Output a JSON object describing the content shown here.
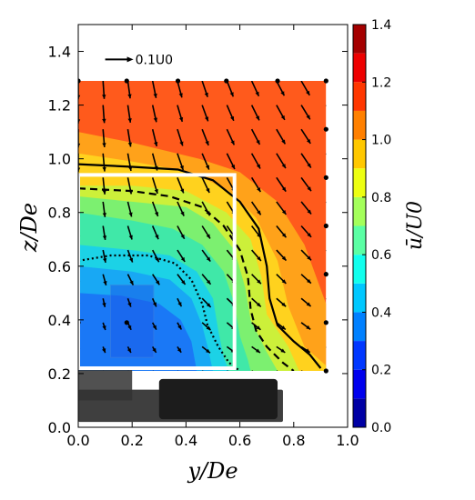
{
  "chart_data": {
    "type": "heatmap",
    "variant": "filled-contour-with-velocity-vectors",
    "xlabel": "y/De",
    "ylabel": "z/De",
    "xlim": [
      0.0,
      1.0
    ],
    "ylim": [
      0.0,
      1.5
    ],
    "x_ticks": [
      "0.0",
      "0.2",
      "0.4",
      "0.6",
      "0.8",
      "1.0"
    ],
    "y_ticks": [
      "0.0",
      "0.2",
      "0.4",
      "0.6",
      "0.8",
      "1.0",
      "1.2",
      "1.4"
    ],
    "colorbar": {
      "label": "ū/U0",
      "range": [
        0.0,
        1.4
      ],
      "ticks": [
        "0.0",
        "0.2",
        "0.4",
        "0.6",
        "0.8",
        "1.0",
        "1.2",
        "1.4"
      ],
      "colormap": "jet",
      "levels": 14
    },
    "reference_vector": {
      "label": "0.1U0",
      "magnitude": 0.1
    },
    "grid": false,
    "measurement_domain": {
      "y": [
        0.0,
        0.92
      ],
      "z": [
        0.21,
        1.29
      ]
    },
    "contour_regions": [
      {
        "level_range": [
          1.1,
          1.2
        ],
        "color": "#ff5a1c",
        "boundary": [
          [
            0.0,
            1.29
          ],
          [
            0.92,
            1.29
          ],
          [
            0.92,
            0.21
          ],
          [
            0.0,
            0.21
          ]
        ]
      },
      {
        "level_range": [
          1.0,
          1.1
        ],
        "color": "#ffa21a",
        "boundary": [
          [
            0.0,
            1.1
          ],
          [
            0.2,
            1.06
          ],
          [
            0.45,
            1.0
          ],
          [
            0.6,
            0.95
          ],
          [
            0.74,
            0.84
          ],
          [
            0.84,
            0.68
          ],
          [
            0.92,
            0.46
          ],
          [
            0.92,
            0.21
          ],
          [
            0.0,
            0.21
          ]
        ]
      },
      {
        "level_range": [
          0.9,
          1.0
        ],
        "color": "#ffd21e",
        "boundary": [
          [
            0.0,
            1.02
          ],
          [
            0.2,
            0.99
          ],
          [
            0.42,
            0.95
          ],
          [
            0.56,
            0.88
          ],
          [
            0.66,
            0.78
          ],
          [
            0.74,
            0.62
          ],
          [
            0.78,
            0.45
          ],
          [
            0.84,
            0.3
          ],
          [
            0.92,
            0.23
          ],
          [
            0.92,
            0.21
          ],
          [
            0.0,
            0.21
          ]
        ]
      },
      {
        "level_range": [
          0.8,
          0.9
        ],
        "color": "#ccf03a",
        "boundary": [
          [
            0.0,
            0.9
          ],
          [
            0.2,
            0.9
          ],
          [
            0.4,
            0.88
          ],
          [
            0.55,
            0.8
          ],
          [
            0.64,
            0.7
          ],
          [
            0.68,
            0.56
          ],
          [
            0.7,
            0.42
          ],
          [
            0.78,
            0.3
          ],
          [
            0.82,
            0.21
          ],
          [
            0.0,
            0.21
          ]
        ]
      },
      {
        "level_range": [
          0.7,
          0.8
        ],
        "color": "#7cf070",
        "boundary": [
          [
            0.0,
            0.86
          ],
          [
            0.2,
            0.84
          ],
          [
            0.4,
            0.82
          ],
          [
            0.5,
            0.76
          ],
          [
            0.58,
            0.66
          ],
          [
            0.62,
            0.52
          ],
          [
            0.64,
            0.4
          ],
          [
            0.7,
            0.28
          ],
          [
            0.74,
            0.21
          ],
          [
            0.0,
            0.21
          ]
        ]
      },
      {
        "level_range": [
          0.6,
          0.7
        ],
        "color": "#40e8a8",
        "boundary": [
          [
            0.0,
            0.8
          ],
          [
            0.2,
            0.77
          ],
          [
            0.35,
            0.74
          ],
          [
            0.46,
            0.68
          ],
          [
            0.54,
            0.58
          ],
          [
            0.58,
            0.46
          ],
          [
            0.6,
            0.34
          ],
          [
            0.63,
            0.25
          ],
          [
            0.64,
            0.21
          ],
          [
            0.0,
            0.21
          ]
        ]
      },
      {
        "level_range": [
          0.5,
          0.6
        ],
        "color": "#1cd2e6",
        "boundary": [
          [
            0.0,
            0.68
          ],
          [
            0.2,
            0.66
          ],
          [
            0.34,
            0.64
          ],
          [
            0.44,
            0.58
          ],
          [
            0.5,
            0.48
          ],
          [
            0.52,
            0.36
          ],
          [
            0.54,
            0.26
          ],
          [
            0.56,
            0.21
          ],
          [
            0.0,
            0.21
          ]
        ]
      },
      {
        "level_range": [
          0.4,
          0.5
        ],
        "color": "#18a8f4",
        "boundary": [
          [
            0.0,
            0.6
          ],
          [
            0.2,
            0.58
          ],
          [
            0.34,
            0.55
          ],
          [
            0.42,
            0.48
          ],
          [
            0.46,
            0.38
          ],
          [
            0.48,
            0.3
          ],
          [
            0.5,
            0.21
          ],
          [
            0.0,
            0.21
          ]
        ]
      },
      {
        "level_range": [
          0.3,
          0.4
        ],
        "color": "#1a78f6",
        "boundary": [
          [
            0.0,
            0.5
          ],
          [
            0.16,
            0.49
          ],
          [
            0.3,
            0.46
          ],
          [
            0.38,
            0.4
          ],
          [
            0.42,
            0.32
          ],
          [
            0.44,
            0.21
          ],
          [
            0.0,
            0.21
          ]
        ]
      }
    ],
    "contour_lines": [
      {
        "style": "solid",
        "points": [
          [
            0.0,
            0.98
          ],
          [
            0.2,
            0.97
          ],
          [
            0.37,
            0.96
          ],
          [
            0.5,
            0.92
          ],
          [
            0.6,
            0.84
          ],
          [
            0.67,
            0.74
          ],
          [
            0.7,
            0.6
          ],
          [
            0.71,
            0.48
          ],
          [
            0.74,
            0.38
          ],
          [
            0.8,
            0.32
          ],
          [
            0.86,
            0.27
          ],
          [
            0.9,
            0.22
          ]
        ]
      },
      {
        "style": "dashed",
        "points": [
          [
            0.0,
            0.89
          ],
          [
            0.2,
            0.88
          ],
          [
            0.34,
            0.86
          ],
          [
            0.46,
            0.82
          ],
          [
            0.54,
            0.75
          ],
          [
            0.6,
            0.66
          ],
          [
            0.63,
            0.56
          ],
          [
            0.64,
            0.44
          ],
          [
            0.66,
            0.36
          ],
          [
            0.7,
            0.3
          ],
          [
            0.76,
            0.24
          ],
          [
            0.8,
            0.21
          ]
        ]
      },
      {
        "style": "dotted",
        "points": [
          [
            0.0,
            0.62
          ],
          [
            0.12,
            0.64
          ],
          [
            0.26,
            0.64
          ],
          [
            0.36,
            0.61
          ],
          [
            0.42,
            0.55
          ],
          [
            0.46,
            0.46
          ],
          [
            0.48,
            0.38
          ],
          [
            0.52,
            0.3
          ],
          [
            0.56,
            0.24
          ],
          [
            0.6,
            0.21
          ]
        ]
      }
    ],
    "velocity_grid": {
      "y_count": 11,
      "z_count": 13,
      "y_range": [
        0.0,
        0.92
      ],
      "z_range": [
        0.21,
        1.29
      ]
    },
    "measurement_points": [
      [
        0.0,
        1.29
      ],
      [
        0.18,
        1.29
      ],
      [
        0.37,
        1.29
      ],
      [
        0.55,
        1.29
      ],
      [
        0.74,
        1.29
      ],
      [
        0.92,
        1.29
      ],
      [
        0.92,
        1.11
      ],
      [
        0.92,
        0.93
      ],
      [
        0.92,
        0.75
      ],
      [
        0.92,
        0.57
      ],
      [
        0.92,
        0.39
      ],
      [
        0.92,
        0.21
      ],
      [
        0.18,
        0.39
      ],
      [
        0.0,
        0.39
      ]
    ],
    "overlay_box": {
      "y": [
        0.0,
        0.58
      ],
      "z": [
        0.22,
        0.94
      ]
    }
  }
}
